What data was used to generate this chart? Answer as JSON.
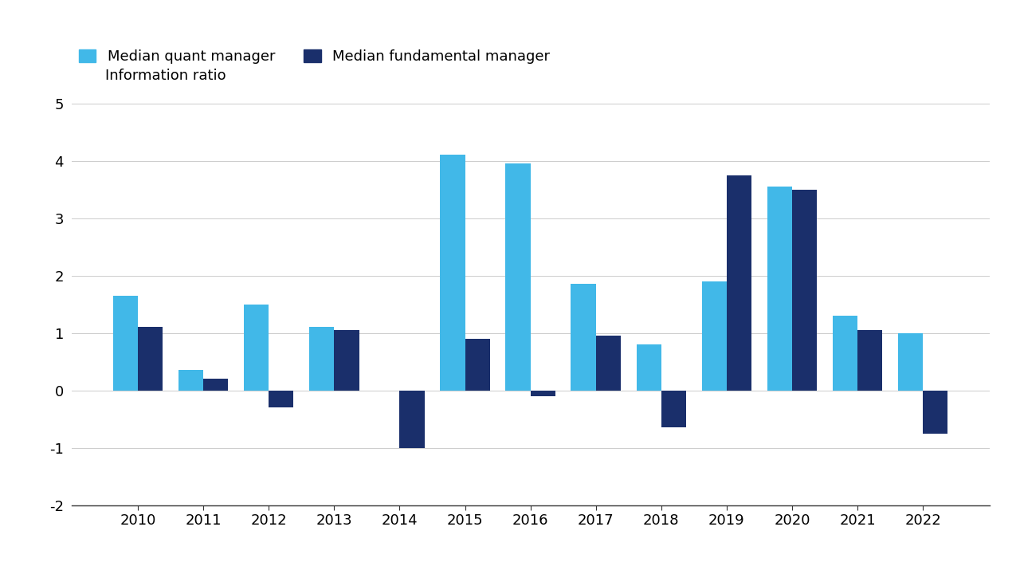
{
  "years": [
    2010,
    2011,
    2012,
    2013,
    2014,
    2015,
    2016,
    2017,
    2018,
    2019,
    2020,
    2021,
    2022
  ],
  "quant": [
    1.65,
    0.35,
    1.5,
    1.1,
    0.0,
    4.1,
    3.95,
    1.85,
    0.8,
    1.9,
    3.55,
    1.3,
    1.0
  ],
  "fundamental": [
    1.1,
    0.2,
    -0.3,
    1.05,
    -1.0,
    0.9,
    -0.1,
    0.95,
    -0.65,
    3.75,
    3.5,
    1.05,
    -0.75
  ],
  "quant_color": "#41B8E8",
  "fundamental_color": "#1A2F6B",
  "background_color": "#FFFFFF",
  "ylabel": "Information ratio",
  "ylim": [
    -2,
    5
  ],
  "yticks": [
    -2,
    -1,
    0,
    1,
    2,
    3,
    4,
    5
  ],
  "legend_quant": "Median quant manager",
  "legend_fundamental": "Median fundamental manager",
  "bar_width": 0.38,
  "grid_color": "#CCCCCC",
  "axis_color": "#333333",
  "tick_fontsize": 13,
  "label_fontsize": 13,
  "legend_fontsize": 13
}
